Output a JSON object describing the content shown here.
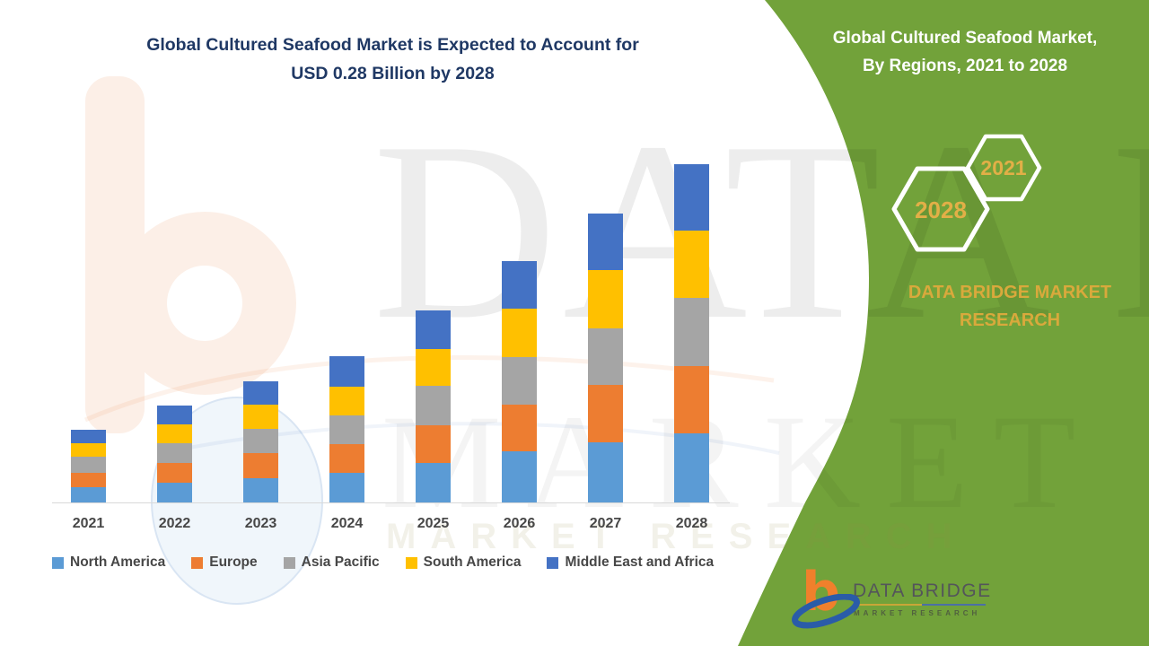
{
  "main_title": {
    "line1": "Global Cultured Seafood Market is Expected to Account for",
    "line2": "USD 0.28 Billion by 2028"
  },
  "watermark": {
    "letter": "b",
    "row1": "DATA BRIDGE",
    "row2": "MARKET RESEARCH",
    "row3": "MARKET RESEARCH"
  },
  "chart_data": {
    "type": "bar",
    "stacked": true,
    "title": "Global Cultured Seafood Market is Expected to Account for USD 0.28 Billion by 2028",
    "unit": "USD Billion",
    "xlabel": "",
    "ylabel": "",
    "grid": false,
    "legend_position": "bottom",
    "ylim": [
      0,
      0.3
    ],
    "categories": [
      "2021",
      "2022",
      "2023",
      "2024",
      "2025",
      "2026",
      "2027",
      "2028"
    ],
    "series": [
      {
        "name": "North America",
        "color": "#5B9BD5",
        "values": [
          0.0128,
          0.0163,
          0.0203,
          0.0243,
          0.0327,
          0.0421,
          0.05,
          0.057
        ]
      },
      {
        "name": "Europe",
        "color": "#ED7D31",
        "values": [
          0.0119,
          0.0161,
          0.0206,
          0.024,
          0.0312,
          0.0383,
          0.0478,
          0.0557
        ]
      },
      {
        "name": "Asia Pacific",
        "color": "#A5A5A5",
        "values": [
          0.0131,
          0.0161,
          0.0198,
          0.0235,
          0.0327,
          0.0397,
          0.047,
          0.0562
        ]
      },
      {
        "name": "South America",
        "color": "#FFC000",
        "values": [
          0.0111,
          0.0156,
          0.0203,
          0.024,
          0.0307,
          0.0403,
          0.0483,
          0.056
        ]
      },
      {
        "name": "Middle East and Africa",
        "color": "#4472C4",
        "values": [
          0.0111,
          0.0156,
          0.0195,
          0.0253,
          0.0322,
          0.0394,
          0.0466,
          0.055
        ]
      }
    ],
    "totals": [
      0.06,
      0.08,
      0.1,
      0.121,
      0.16,
      0.2,
      0.24,
      0.28
    ]
  },
  "side_panel": {
    "title_line1": "Global Cultured Seafood Market,",
    "title_line2": "By Regions, 2021 to 2028",
    "hex_back_year": "2021",
    "hex_front_year": "2028",
    "brand_text": "DATA BRIDGE MARKET RESEARCH",
    "logo": {
      "letter": "b",
      "name": "DATA BRIDGE",
      "tagline": "MARKET RESEARCH"
    },
    "colors": {
      "panel_green": "#72A23A",
      "gold": "#D9A93C",
      "hexagon_outline": "#FFFFFF",
      "title_navy": "#1F3864"
    }
  }
}
